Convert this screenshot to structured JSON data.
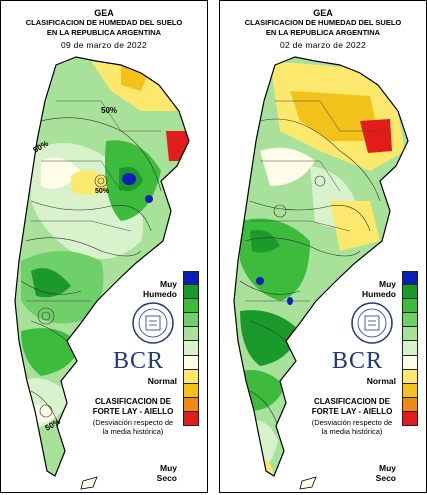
{
  "panels": [
    {
      "org": "GEA",
      "title_line1": "CLASIFICACION DE HUMEDAD DEL SUELO",
      "title_line2": "EN LA REPUBLICA ARGENTINA",
      "date": "09 de marzo de 2022",
      "contour_labels": [
        "50%",
        "50%",
        "50%",
        "50%"
      ]
    },
    {
      "org": "GEA",
      "title_line1": "CLASIFICACION DE HUMEDAD DEL SUELO",
      "title_line2": "EN LA REPUBLICA ARGENTINA",
      "date": "02 de marzo de 2022",
      "contour_labels": []
    }
  ],
  "legend": {
    "top_label": "Muy\nHumedo",
    "mid_label": "Normal",
    "bottom_label": "Muy\nSeco",
    "colors": [
      "#0a1fb8",
      "#1a9a2a",
      "#3dbb3d",
      "#6fd06a",
      "#a8e29a",
      "#d8f2cc",
      "#fefee8",
      "#fbe86c",
      "#f2c21a",
      "#ef8a14",
      "#e21b1b"
    ]
  },
  "logo": {
    "brand": "BCR",
    "icon": "bcr-seal-icon"
  },
  "classification": {
    "line1": "CLASIFICACION DE",
    "line2": "FORTE LAY - AIELLO",
    "note1": "(Desviación respecto de",
    "note2": "la media histórica)"
  }
}
